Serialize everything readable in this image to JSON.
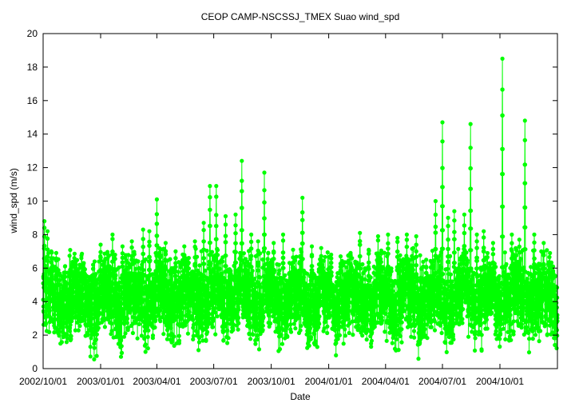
{
  "chart_data": {
    "type": "scatter",
    "title": "CEOP CAMP-NSCSSJ_TMEX Suao  wind_spd",
    "xlabel": "Date",
    "ylabel": "wind_spd (m/s)",
    "ylim": [
      0,
      20
    ],
    "yticks": [
      "0",
      "2",
      "4",
      "6",
      "8",
      "10",
      "12",
      "14",
      "16",
      "18",
      "20"
    ],
    "xlim": [
      "2002/10/01",
      "2005/01/01"
    ],
    "xticks": [
      "2002/10/01",
      "2003/01/01",
      "2003/04/01",
      "2003/07/01",
      "2003/10/01",
      "2004/01/01",
      "2004/04/01",
      "2004/07/01",
      "2004/10/01"
    ],
    "grid": false,
    "legend": "none",
    "series_color": "#00ff00",
    "series": [
      {
        "name": "",
        "points": [
          [
            "2002/10/03",
            8.8
          ],
          [
            "2002/10/08",
            8.2
          ],
          [
            "2002/10/14",
            7.0
          ],
          [
            "2002/10/22",
            6.9
          ],
          [
            "2002/11/05",
            6.1
          ],
          [
            "2002/11/20",
            6.6
          ],
          [
            "2002/12/05",
            6.3
          ],
          [
            "2002/12/20",
            6.2
          ],
          [
            "2003/01/01",
            7.4
          ],
          [
            "2003/01/20",
            8.0
          ],
          [
            "2003/02/05",
            7.3
          ],
          [
            "2003/02/20",
            7.6
          ],
          [
            "2003/03/10",
            8.3
          ],
          [
            "2003/03/20",
            8.2
          ],
          [
            "2003/04/01",
            10.1
          ],
          [
            "2003/04/15",
            7.5
          ],
          [
            "2003/05/01",
            7.0
          ],
          [
            "2003/05/15",
            7.3
          ],
          [
            "2003/06/01",
            7.6
          ],
          [
            "2003/06/15",
            8.7
          ],
          [
            "2003/06/25",
            10.9
          ],
          [
            "2003/07/05",
            10.9
          ],
          [
            "2003/07/20",
            9.1
          ],
          [
            "2003/08/05",
            9.2
          ],
          [
            "2003/08/15",
            12.4
          ],
          [
            "2003/08/30",
            8.0
          ],
          [
            "2003/09/10",
            7.6
          ],
          [
            "2003/09/20",
            11.7
          ],
          [
            "2003/10/05",
            7.5
          ],
          [
            "2003/10/20",
            8.0
          ],
          [
            "2003/11/05",
            7.1
          ],
          [
            "2003/11/20",
            10.2
          ],
          [
            "2003/12/05",
            7.3
          ],
          [
            "2003/12/20",
            7.2
          ],
          [
            "2004/01/05",
            6.8
          ],
          [
            "2004/01/20",
            6.7
          ],
          [
            "2004/02/05",
            6.9
          ],
          [
            "2004/02/20",
            8.1
          ],
          [
            "2004/03/05",
            7.1
          ],
          [
            "2004/03/20",
            7.9
          ],
          [
            "2004/04/05",
            8.0
          ],
          [
            "2004/04/20",
            7.8
          ],
          [
            "2004/05/05",
            8.0
          ],
          [
            "2004/05/20",
            7.9
          ],
          [
            "2004/06/05",
            6.5
          ],
          [
            "2004/06/20",
            10.0
          ],
          [
            "2004/07/01",
            14.7
          ],
          [
            "2004/07/10",
            9.0
          ],
          [
            "2004/07/20",
            9.4
          ],
          [
            "2004/08/05",
            9.2
          ],
          [
            "2004/08/15",
            14.6
          ],
          [
            "2004/08/25",
            8.0
          ],
          [
            "2004/09/05",
            8.2
          ],
          [
            "2004/09/20",
            7.5
          ],
          [
            "2004/10/05",
            18.5
          ],
          [
            "2004/10/20",
            8.0
          ],
          [
            "2004/11/01",
            7.7
          ],
          [
            "2004/11/10",
            14.8
          ],
          [
            "2004/11/25",
            8.0
          ],
          [
            "2004/12/10",
            7.5
          ],
          [
            "2004/12/25",
            6.1
          ]
        ]
      }
    ]
  }
}
